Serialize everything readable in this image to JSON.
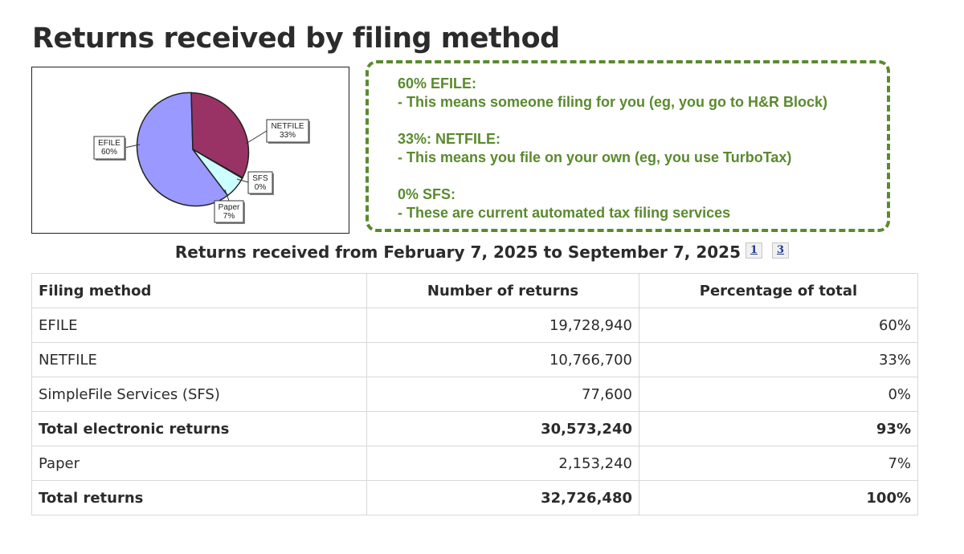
{
  "page": {
    "title": "Returns received by filing method"
  },
  "annotation": {
    "paragraphs": [
      {
        "heading": "60% EFILE:",
        "body": "- This means someone filing for you (eg, you go to H&R Block)"
      },
      {
        "heading": "33%: NETFILE:",
        "body": "- This means you file on your own (eg, you use TurboTax)"
      },
      {
        "heading": "0% SFS:",
        "body": "- These are current automated tax filing services"
      }
    ],
    "border_color": "#5a8a2e"
  },
  "chart_data": {
    "type": "pie",
    "slices": [
      {
        "label": "EFILE",
        "pct_label": "60%",
        "value": 60.3,
        "color": "#9999ff"
      },
      {
        "label": "NETFILE",
        "pct_label": "33%",
        "value": 32.9,
        "color": "#993366"
      },
      {
        "label": "SFS",
        "pct_label": "0%",
        "value": 0.2,
        "color": "#ccffff"
      },
      {
        "label": "Paper",
        "pct_label": "7%",
        "value": 6.6,
        "color": "#ccffff"
      }
    ],
    "title": ""
  },
  "caption": {
    "text": "Returns received from February 7, 2025 to September 7, 2025",
    "footnotes": [
      "1",
      "3"
    ]
  },
  "table": {
    "headers": [
      "Filing method",
      "Number of returns",
      "Percentage of total"
    ],
    "rows": [
      {
        "method": "EFILE",
        "number": "19,728,940",
        "percent": "60%",
        "bold": false
      },
      {
        "method": "NETFILE",
        "number": "10,766,700",
        "percent": "33%",
        "bold": false
      },
      {
        "method": "SimpleFile Services (SFS)",
        "number": "77,600",
        "percent": "0%",
        "bold": false
      },
      {
        "method": "Total electronic returns",
        "number": "30,573,240",
        "percent": "93%",
        "bold": true
      },
      {
        "method": "Paper",
        "number": "2,153,240",
        "percent": "7%",
        "bold": false
      },
      {
        "method": "Total returns",
        "number": "32,726,480",
        "percent": "100%",
        "bold": true
      }
    ]
  }
}
